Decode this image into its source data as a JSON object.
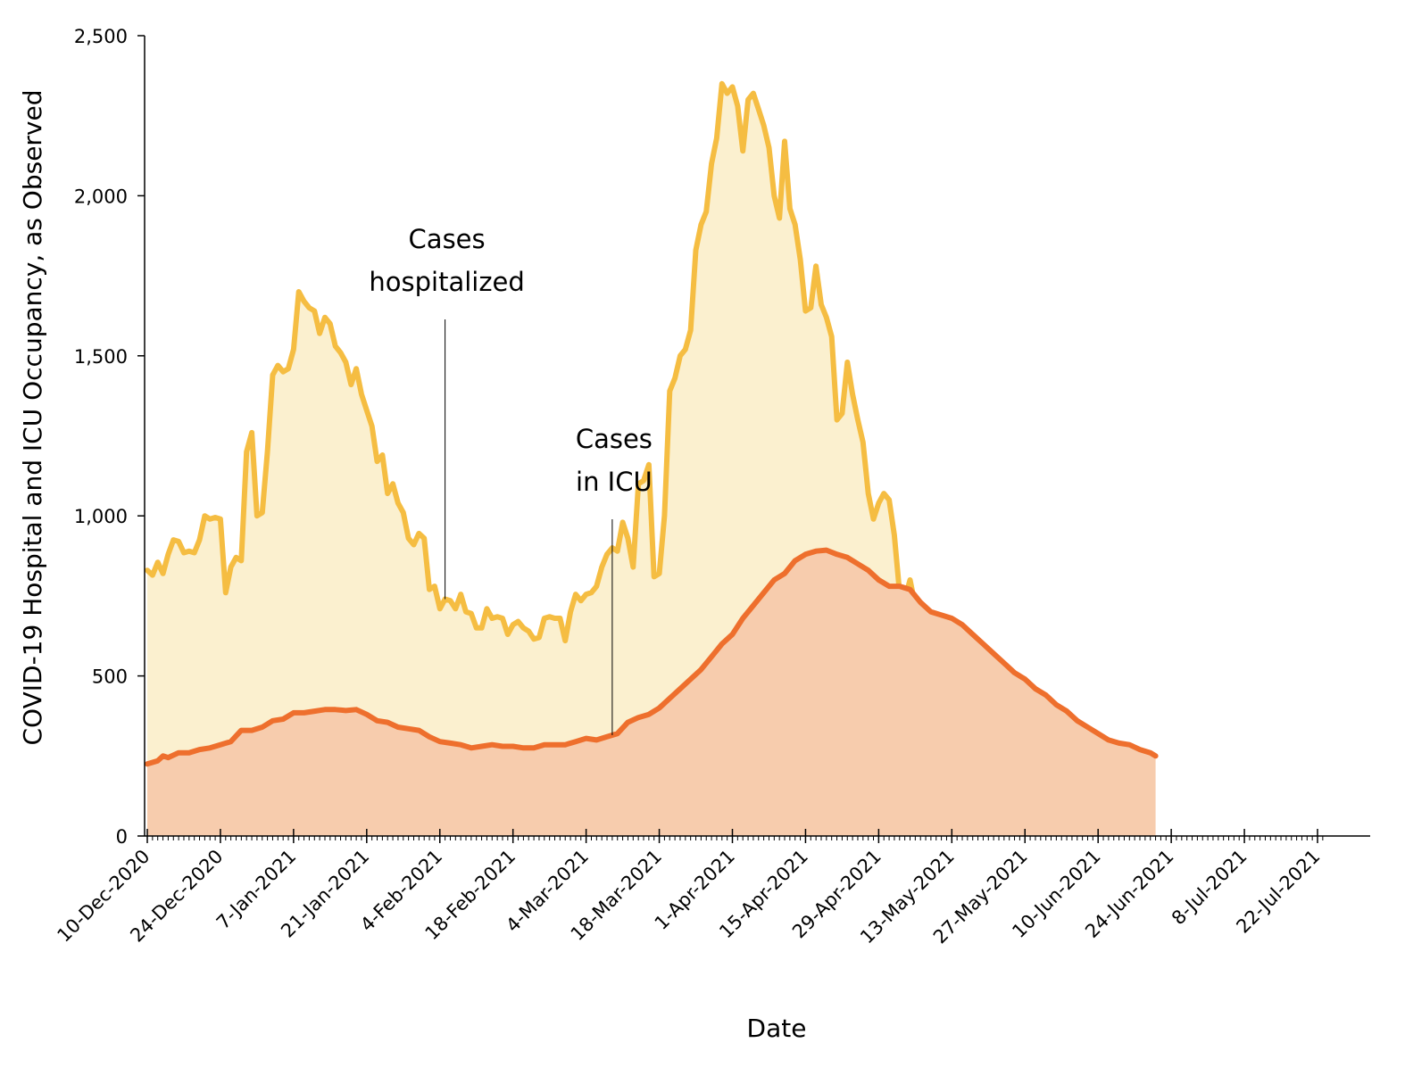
{
  "chart_data": {
    "type": "area",
    "xlabel": "Date",
    "ylabel": "COVID-19 Hospital and ICU Occupancy, as Observed",
    "ylim": [
      0,
      2500
    ],
    "yticks": [
      {
        "value": 0,
        "label": "0"
      },
      {
        "value": 500,
        "label": "500"
      },
      {
        "value": 1000,
        "label": "1,000"
      },
      {
        "value": 1500,
        "label": "1,500"
      },
      {
        "value": 2000,
        "label": "2,000"
      },
      {
        "value": 2500,
        "label": "2,500"
      }
    ],
    "xlim_days": [
      0,
      225
    ],
    "xticks": [
      {
        "day": 0,
        "label": "10-Dec-2020"
      },
      {
        "day": 14,
        "label": "24-Dec-2020"
      },
      {
        "day": 28,
        "label": "7-Jan-2021"
      },
      {
        "day": 42,
        "label": "21-Jan-2021"
      },
      {
        "day": 56,
        "label": "4-Feb-2021"
      },
      {
        "day": 70,
        "label": "18-Feb-2021"
      },
      {
        "day": 84,
        "label": "4-Mar-2021"
      },
      {
        "day": 98,
        "label": "18-Mar-2021"
      },
      {
        "day": 112,
        "label": "1-Apr-2021"
      },
      {
        "day": 126,
        "label": "15-Apr-2021"
      },
      {
        "day": 140,
        "label": "29-Apr-2021"
      },
      {
        "day": 154,
        "label": "13-May-2021"
      },
      {
        "day": 168,
        "label": "27-May-2021"
      },
      {
        "day": 182,
        "label": "10-Jun-2021"
      },
      {
        "day": 196,
        "label": "24-Jun-2021"
      },
      {
        "day": 210,
        "label": "8-Jul-2021"
      },
      {
        "day": 224,
        "label": "22-Jul-2021"
      }
    ],
    "series": [
      {
        "name": "Cases hospitalized",
        "line_color": "#f5bd42",
        "fill_color": "#fbf0cf",
        "points": [
          [
            0,
            830
          ],
          [
            1,
            815
          ],
          [
            2,
            855
          ],
          [
            3,
            820
          ],
          [
            4,
            880
          ],
          [
            5,
            925
          ],
          [
            6,
            920
          ],
          [
            7,
            885
          ],
          [
            8,
            890
          ],
          [
            9,
            885
          ],
          [
            10,
            925
          ],
          [
            11,
            1000
          ],
          [
            12,
            990
          ],
          [
            13,
            995
          ],
          [
            14,
            990
          ],
          [
            15,
            760
          ],
          [
            16,
            840
          ],
          [
            17,
            870
          ],
          [
            18,
            860
          ],
          [
            19,
            1200
          ],
          [
            20,
            1260
          ],
          [
            21,
            1000
          ],
          [
            22,
            1010
          ],
          [
            23,
            1200
          ],
          [
            24,
            1440
          ],
          [
            25,
            1470
          ],
          [
            26,
            1450
          ],
          [
            27,
            1460
          ],
          [
            28,
            1520
          ],
          [
            29,
            1700
          ],
          [
            30,
            1670
          ],
          [
            31,
            1650
          ],
          [
            32,
            1640
          ],
          [
            33,
            1570
          ],
          [
            34,
            1620
          ],
          [
            35,
            1600
          ],
          [
            36,
            1530
          ],
          [
            37,
            1510
          ],
          [
            38,
            1480
          ],
          [
            39,
            1410
          ],
          [
            40,
            1460
          ],
          [
            41,
            1380
          ],
          [
            42,
            1330
          ],
          [
            43,
            1280
          ],
          [
            44,
            1170
          ],
          [
            45,
            1190
          ],
          [
            46,
            1070
          ],
          [
            47,
            1100
          ],
          [
            48,
            1040
          ],
          [
            49,
            1010
          ],
          [
            50,
            930
          ],
          [
            51,
            910
          ],
          [
            52,
            945
          ],
          [
            53,
            930
          ],
          [
            54,
            770
          ],
          [
            55,
            780
          ],
          [
            56,
            710
          ],
          [
            57,
            740
          ],
          [
            58,
            735
          ],
          [
            59,
            710
          ],
          [
            60,
            755
          ],
          [
            61,
            700
          ],
          [
            62,
            695
          ],
          [
            63,
            650
          ],
          [
            64,
            650
          ],
          [
            65,
            710
          ],
          [
            66,
            680
          ],
          [
            67,
            685
          ],
          [
            68,
            680
          ],
          [
            69,
            630
          ],
          [
            70,
            660
          ],
          [
            71,
            670
          ],
          [
            72,
            650
          ],
          [
            73,
            640
          ],
          [
            74,
            615
          ],
          [
            75,
            620
          ],
          [
            76,
            680
          ],
          [
            77,
            685
          ],
          [
            78,
            680
          ],
          [
            79,
            680
          ],
          [
            80,
            610
          ],
          [
            81,
            700
          ],
          [
            82,
            755
          ],
          [
            83,
            735
          ],
          [
            84,
            755
          ],
          [
            85,
            760
          ],
          [
            86,
            780
          ],
          [
            87,
            840
          ],
          [
            88,
            880
          ],
          [
            89,
            900
          ],
          [
            90,
            890
          ],
          [
            91,
            980
          ],
          [
            92,
            930
          ],
          [
            93,
            840
          ],
          [
            94,
            1100
          ],
          [
            95,
            1110
          ],
          [
            96,
            1160
          ],
          [
            97,
            810
          ],
          [
            98,
            820
          ],
          [
            99,
            1000
          ],
          [
            100,
            1390
          ],
          [
            101,
            1430
          ],
          [
            102,
            1500
          ],
          [
            103,
            1520
          ],
          [
            104,
            1580
          ],
          [
            105,
            1830
          ],
          [
            106,
            1910
          ],
          [
            107,
            1950
          ],
          [
            108,
            2100
          ],
          [
            109,
            2180
          ],
          [
            110,
            2350
          ],
          [
            111,
            2320
          ],
          [
            112,
            2340
          ],
          [
            113,
            2280
          ],
          [
            114,
            2140
          ],
          [
            115,
            2300
          ],
          [
            116,
            2320
          ],
          [
            117,
            2270
          ],
          [
            118,
            2220
          ],
          [
            119,
            2150
          ],
          [
            120,
            2000
          ],
          [
            121,
            1930
          ],
          [
            122,
            2170
          ],
          [
            123,
            1960
          ],
          [
            124,
            1910
          ],
          [
            125,
            1800
          ],
          [
            126,
            1640
          ],
          [
            127,
            1650
          ],
          [
            128,
            1780
          ],
          [
            129,
            1660
          ],
          [
            130,
            1620
          ],
          [
            131,
            1560
          ],
          [
            132,
            1300
          ],
          [
            133,
            1320
          ],
          [
            134,
            1480
          ],
          [
            135,
            1380
          ],
          [
            136,
            1300
          ],
          [
            137,
            1230
          ],
          [
            138,
            1070
          ],
          [
            139,
            990
          ],
          [
            140,
            1040
          ],
          [
            141,
            1070
          ],
          [
            142,
            1050
          ],
          [
            143,
            940
          ],
          [
            144,
            760
          ],
          [
            145,
            740
          ],
          [
            146,
            800
          ],
          [
            147,
            720
          ],
          [
            148,
            710
          ],
          [
            149,
            640
          ],
          [
            150,
            560
          ],
          [
            151,
            620
          ],
          [
            152,
            570
          ],
          [
            153,
            510
          ],
          [
            154,
            480
          ],
          [
            155,
            440
          ],
          [
            156,
            410
          ],
          [
            157,
            430
          ],
          [
            158,
            440
          ],
          [
            159,
            400
          ],
          [
            160,
            370
          ],
          [
            161,
            340
          ],
          [
            162,
            340
          ],
          [
            163,
            330
          ],
          [
            164,
            330
          ],
          [
            165,
            290
          ],
          [
            166,
            290
          ],
          [
            167,
            290
          ],
          [
            168,
            275
          ],
          [
            169,
            260
          ],
          [
            170,
            250
          ]
        ]
      },
      {
        "name": "Cases in ICU",
        "line_color": "#ee6f2d",
        "fill_color": "#f7ccad",
        "points": [
          [
            0,
            225
          ],
          [
            2,
            235
          ],
          [
            3,
            250
          ],
          [
            4,
            245
          ],
          [
            6,
            260
          ],
          [
            8,
            260
          ],
          [
            10,
            270
          ],
          [
            12,
            275
          ],
          [
            14,
            285
          ],
          [
            16,
            295
          ],
          [
            18,
            330
          ],
          [
            20,
            330
          ],
          [
            22,
            340
          ],
          [
            24,
            360
          ],
          [
            26,
            365
          ],
          [
            28,
            385
          ],
          [
            30,
            385
          ],
          [
            32,
            390
          ],
          [
            34,
            395
          ],
          [
            36,
            395
          ],
          [
            38,
            392
          ],
          [
            40,
            395
          ],
          [
            42,
            380
          ],
          [
            44,
            360
          ],
          [
            46,
            355
          ],
          [
            48,
            340
          ],
          [
            50,
            335
          ],
          [
            52,
            330
          ],
          [
            54,
            310
          ],
          [
            56,
            295
          ],
          [
            58,
            290
          ],
          [
            60,
            285
          ],
          [
            62,
            275
          ],
          [
            64,
            280
          ],
          [
            66,
            285
          ],
          [
            68,
            280
          ],
          [
            70,
            280
          ],
          [
            72,
            275
          ],
          [
            74,
            275
          ],
          [
            76,
            285
          ],
          [
            78,
            285
          ],
          [
            80,
            285
          ],
          [
            82,
            295
          ],
          [
            84,
            305
          ],
          [
            86,
            300
          ],
          [
            88,
            310
          ],
          [
            90,
            320
          ],
          [
            92,
            355
          ],
          [
            94,
            370
          ],
          [
            96,
            380
          ],
          [
            98,
            400
          ],
          [
            100,
            430
          ],
          [
            102,
            460
          ],
          [
            104,
            490
          ],
          [
            106,
            520
          ],
          [
            108,
            560
          ],
          [
            110,
            600
          ],
          [
            112,
            630
          ],
          [
            114,
            680
          ],
          [
            116,
            720
          ],
          [
            118,
            760
          ],
          [
            120,
            800
          ],
          [
            122,
            820
          ],
          [
            124,
            860
          ],
          [
            126,
            880
          ],
          [
            128,
            890
          ],
          [
            130,
            893
          ],
          [
            132,
            880
          ],
          [
            134,
            870
          ],
          [
            136,
            850
          ],
          [
            138,
            830
          ],
          [
            140,
            800
          ],
          [
            142,
            780
          ],
          [
            144,
            780
          ],
          [
            146,
            770
          ],
          [
            148,
            730
          ],
          [
            150,
            700
          ],
          [
            152,
            690
          ],
          [
            154,
            680
          ],
          [
            156,
            660
          ],
          [
            158,
            630
          ],
          [
            160,
            600
          ],
          [
            162,
            570
          ],
          [
            164,
            540
          ],
          [
            166,
            510
          ],
          [
            168,
            490
          ],
          [
            170,
            460
          ],
          [
            172,
            440
          ],
          [
            174,
            410
          ],
          [
            176,
            390
          ],
          [
            178,
            360
          ],
          [
            180,
            340
          ],
          [
            182,
            320
          ],
          [
            184,
            300
          ],
          [
            186,
            290
          ],
          [
            188,
            285
          ],
          [
            190,
            270
          ],
          [
            192,
            260
          ],
          [
            193,
            250
          ]
        ]
      }
    ],
    "annotations": [
      {
        "lines": [
          "Cases",
          "hospitalized"
        ],
        "series": "Cases hospitalized",
        "day": 57
      },
      {
        "lines": [
          "Cases",
          "in ICU"
        ],
        "series": "Cases in ICU",
        "day": 89
      }
    ]
  }
}
